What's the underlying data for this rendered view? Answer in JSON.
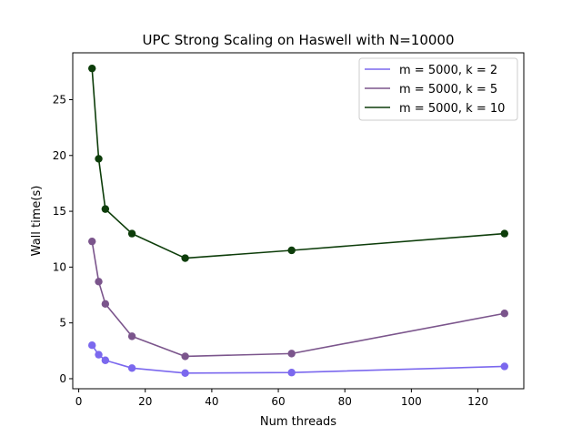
{
  "chart_data": {
    "type": "line",
    "title": "UPC Strong Scaling on Haswell with N=10000",
    "xlabel": "Num threads",
    "ylabel": "Wall time(s)",
    "xlim": [
      -1.8,
      133.8
    ],
    "ylim": [
      -0.9,
      29.2
    ],
    "xticks": [
      0,
      20,
      40,
      60,
      80,
      100,
      120
    ],
    "yticks": [
      0,
      5,
      10,
      15,
      20,
      25
    ],
    "grid": false,
    "legend_position": "top-right",
    "markers": "circle",
    "x": [
      4,
      6,
      8,
      16,
      32,
      64,
      128
    ],
    "series": [
      {
        "name": "m = 5000, k = 2",
        "color": "#7b68ee",
        "values": [
          3.0,
          2.15,
          1.65,
          0.95,
          0.5,
          0.55,
          1.1
        ]
      },
      {
        "name": "m = 5000, k = 5",
        "color": "#7b558c",
        "values": [
          12.3,
          8.7,
          6.7,
          3.8,
          2.0,
          2.25,
          5.85
        ]
      },
      {
        "name": "m = 5000, k = 10",
        "color": "#0d3d0a",
        "values": [
          27.8,
          19.7,
          15.2,
          13.0,
          10.8,
          11.5,
          13.0
        ]
      }
    ]
  }
}
